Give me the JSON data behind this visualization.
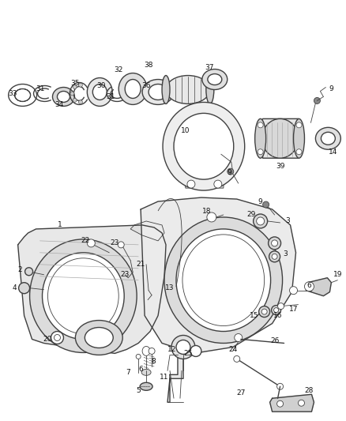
{
  "bg_color": "#ffffff",
  "line_color": "#404040",
  "label_color": "#111111",
  "figsize": [
    4.38,
    5.33
  ],
  "dpi": 100,
  "label_fs": 6.5
}
